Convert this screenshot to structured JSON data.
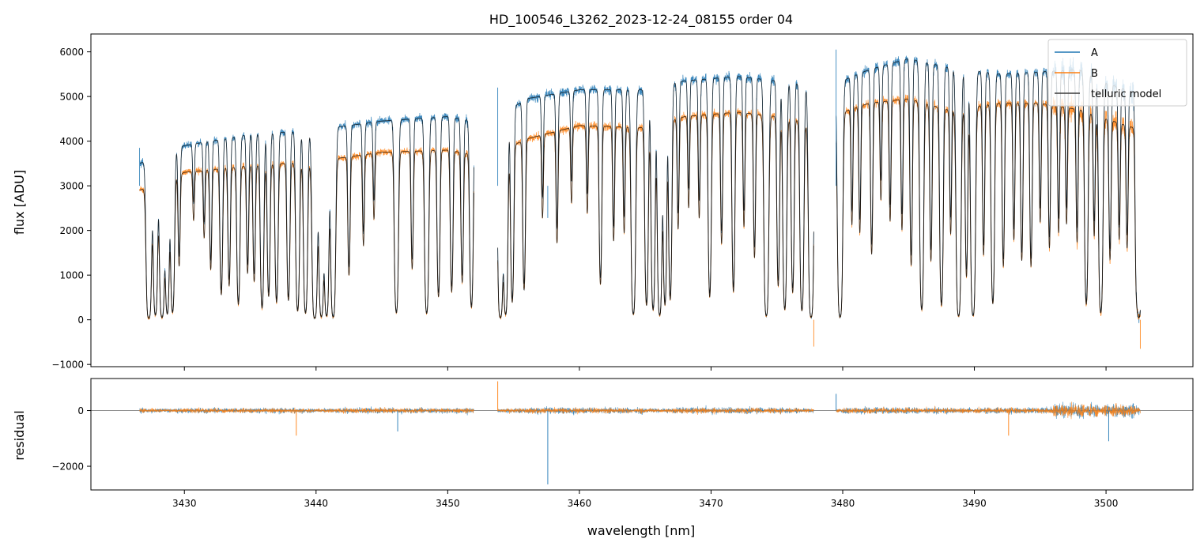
{
  "chart_data": [
    {
      "panel": "main",
      "type": "line",
      "title": "HD_100546_L3262_2023-12-24_08155  order 04",
      "xlabel": "",
      "ylabel": "flux [ADU]",
      "xlim": [
        3422.9,
        3506.6
      ],
      "ylim": [
        -1050,
        6400
      ],
      "x_ticks": [
        3430,
        3440,
        3450,
        3460,
        3470,
        3480,
        3490,
        3500
      ],
      "y_ticks": [
        -1000,
        0,
        1000,
        2000,
        3000,
        4000,
        5000,
        6000
      ],
      "y_tick_labels": [
        "−1000",
        "0",
        "1000",
        "2000",
        "3000",
        "4000",
        "5000",
        "6000"
      ],
      "legend_position": "top-right",
      "segments": [
        {
          "x_start": 3426.6,
          "x_end": 3452.0,
          "continuum_A": [
            [
              3426.6,
              3500
            ],
            [
              3430,
              3900
            ],
            [
              3435,
              4150
            ],
            [
              3440,
              4250
            ],
            [
              3445,
              4450
            ],
            [
              3450,
              4550
            ],
            [
              3452.0,
              4450
            ]
          ],
          "continuum_B": [
            [
              3426.6,
              2900
            ],
            [
              3430,
              3300
            ],
            [
              3435,
              3450
            ],
            [
              3440,
              3550
            ],
            [
              3445,
              3750
            ],
            [
              3450,
              3800
            ],
            [
              3452.0,
              3700
            ]
          ],
          "lines": [
            [
              3427.3,
              4.6
            ],
            [
              3427.8,
              3.4
            ],
            [
              3428.3,
              4.2
            ],
            [
              3428.7,
              3.2
            ],
            [
              3429.1,
              3.0
            ],
            [
              3429.6,
              1.0
            ],
            [
              3430.7,
              0.4
            ],
            [
              3431.5,
              0.6
            ],
            [
              3432.0,
              1.1
            ],
            [
              3432.8,
              1.8
            ],
            [
              3433.4,
              1.5
            ],
            [
              3434.1,
              2.3
            ],
            [
              3434.8,
              1.2
            ],
            [
              3435.3,
              1.4
            ],
            [
              3435.9,
              2.6
            ],
            [
              3436.4,
              1.9
            ],
            [
              3437.0,
              2.2
            ],
            [
              3437.9,
              2.1
            ],
            [
              3438.6,
              2.9
            ],
            [
              3439.2,
              3.2
            ],
            [
              3439.9,
              4.6
            ],
            [
              3440.4,
              4.0
            ],
            [
              3440.8,
              3.8
            ],
            [
              3441.3,
              4.1
            ],
            [
              3442.5,
              1.3
            ],
            [
              3443.6,
              0.8
            ],
            [
              3444.4,
              0.5
            ],
            [
              3446.1,
              3.2
            ],
            [
              3447.3,
              1.2
            ],
            [
              3448.4,
              3.3
            ],
            [
              3449.3,
              2.0
            ],
            [
              3450.3,
              1.8
            ],
            [
              3451.1,
              1.5
            ],
            [
              3451.8,
              2.6
            ]
          ]
        },
        {
          "x_start": 3453.8,
          "x_end": 3477.8,
          "continuum_A": [
            [
              3453.8,
              4550
            ],
            [
              3456,
              4950
            ],
            [
              3460,
              5150
            ],
            [
              3465,
              5150
            ],
            [
              3468,
              5350
            ],
            [
              3472,
              5450
            ],
            [
              3475,
              5350
            ],
            [
              3477.8,
              5250
            ]
          ],
          "continuum_B": [
            [
              3453.8,
              3750
            ],
            [
              3456,
              4050
            ],
            [
              3460,
              4350
            ],
            [
              3465,
              4300
            ],
            [
              3468,
              4550
            ],
            [
              3472,
              4650
            ],
            [
              3475,
              4550
            ],
            [
              3477.8,
              4400
            ]
          ],
          "lines": [
            [
              3454.0,
              4.5
            ],
            [
              3454.4,
              3.5
            ],
            [
              3454.9,
              2.3
            ],
            [
              3455.8,
              1.8
            ],
            [
              3457.2,
              0.6
            ],
            [
              3458.3,
              0.9
            ],
            [
              3459.4,
              0.5
            ],
            [
              3460.6,
              0.6
            ],
            [
              3461.6,
              1.7
            ],
            [
              3462.6,
              0.9
            ],
            [
              3463.4,
              0.8
            ],
            [
              3464.1,
              3.6
            ],
            [
              3465.1,
              2.6
            ],
            [
              3465.6,
              3.0
            ],
            [
              3466.1,
              3.8
            ],
            [
              3466.5,
              2.6
            ],
            [
              3466.9,
              2.3
            ],
            [
              3467.5,
              0.8
            ],
            [
              3468.3,
              0.6
            ],
            [
              3469.1,
              0.7
            ],
            [
              3469.9,
              2.2
            ],
            [
              3470.8,
              1.0
            ],
            [
              3471.7,
              2.0
            ],
            [
              3472.5,
              0.8
            ],
            [
              3473.3,
              1.2
            ],
            [
              3474.2,
              4.0
            ],
            [
              3475.1,
              1.8
            ],
            [
              3475.6,
              3.0
            ],
            [
              3476.2,
              2.0
            ],
            [
              3476.9,
              3.1
            ],
            [
              3477.6,
              4.4
            ]
          ]
        },
        {
          "x_start": 3479.5,
          "x_end": 3502.6,
          "continuum_A": [
            [
              3479.5,
              5300
            ],
            [
              3482,
              5600
            ],
            [
              3485,
              5850
            ],
            [
              3488,
              5650
            ],
            [
              3492,
              5500
            ],
            [
              3495,
              5550
            ],
            [
              3498,
              5600
            ],
            [
              3500,
              5300
            ],
            [
              3502.6,
              5050
            ]
          ],
          "continuum_B": [
            [
              3479.5,
              4600
            ],
            [
              3482,
              4850
            ],
            [
              3485,
              4950
            ],
            [
              3488,
              4700
            ],
            [
              3492,
              4850
            ],
            [
              3495,
              4850
            ],
            [
              3498,
              4700
            ],
            [
              3500,
              4500
            ],
            [
              3502.6,
              4250
            ]
          ],
          "lines": [
            [
              3479.8,
              4.4
            ],
            [
              3480.7,
              0.8
            ],
            [
              3481.3,
              0.9
            ],
            [
              3482.2,
              1.2
            ],
            [
              3482.9,
              0.6
            ],
            [
              3483.6,
              0.8
            ],
            [
              3484.5,
              0.9
            ],
            [
              3485.2,
              1.4
            ],
            [
              3486.0,
              3.1
            ],
            [
              3486.7,
              1.3
            ],
            [
              3487.5,
              2.7
            ],
            [
              3488.2,
              0.9
            ],
            [
              3488.8,
              4.1
            ],
            [
              3489.4,
              1.6
            ],
            [
              3489.9,
              4.0
            ],
            [
              3490.7,
              1.2
            ],
            [
              3491.4,
              2.6
            ],
            [
              3492.2,
              1.4
            ],
            [
              3493.0,
              1.0
            ],
            [
              3493.6,
              1.3
            ],
            [
              3494.3,
              1.4
            ],
            [
              3495.0,
              0.8
            ],
            [
              3495.7,
              1.1
            ],
            [
              3496.4,
              0.9
            ],
            [
              3497.0,
              0.8
            ],
            [
              3497.8,
              1.0
            ],
            [
              3498.5,
              2.6
            ],
            [
              3499.1,
              0.9
            ],
            [
              3499.6,
              3.4
            ],
            [
              3500.3,
              1.2
            ],
            [
              3501.0,
              0.9
            ],
            [
              3501.6,
              1.0
            ],
            [
              3502.3,
              1.2
            ],
            [
              3502.5,
              4.5
            ]
          ]
        }
      ],
      "spikes": [
        [
          3426.6,
          3850
        ],
        [
          3453.8,
          5200
        ],
        [
          3457.6,
          2280
        ],
        [
          3479.5,
          6050
        ],
        [
          3477.8,
          -600
        ],
        [
          3502.6,
          -650
        ]
      ],
      "series": [
        {
          "name": "A",
          "color": "#1f77b4"
        },
        {
          "name": "B",
          "color": "#ff7f0e"
        },
        {
          "name": "telluric model",
          "color": "#3a3a3a"
        }
      ]
    },
    {
      "panel": "residual",
      "type": "line",
      "xlabel": "wavelength [nm]",
      "ylabel": "residual",
      "xlim": [
        3422.9,
        3506.6
      ],
      "ylim": [
        -2850,
        1150
      ],
      "x_ticks": [
        3430,
        3440,
        3450,
        3460,
        3470,
        3480,
        3490,
        3500
      ],
      "y_ticks": [
        -2000,
        0
      ],
      "y_tick_labels": [
        "−2000",
        "0"
      ],
      "zero_line": true,
      "residual_spikes": [
        [
          3457.6,
          -2650
        ],
        [
          3453.8,
          1050
        ],
        [
          3479.5,
          600
        ],
        [
          3438.5,
          -900
        ],
        [
          3446.2,
          -750
        ],
        [
          3492.6,
          -900
        ],
        [
          3500.2,
          -1100
        ]
      ]
    }
  ]
}
